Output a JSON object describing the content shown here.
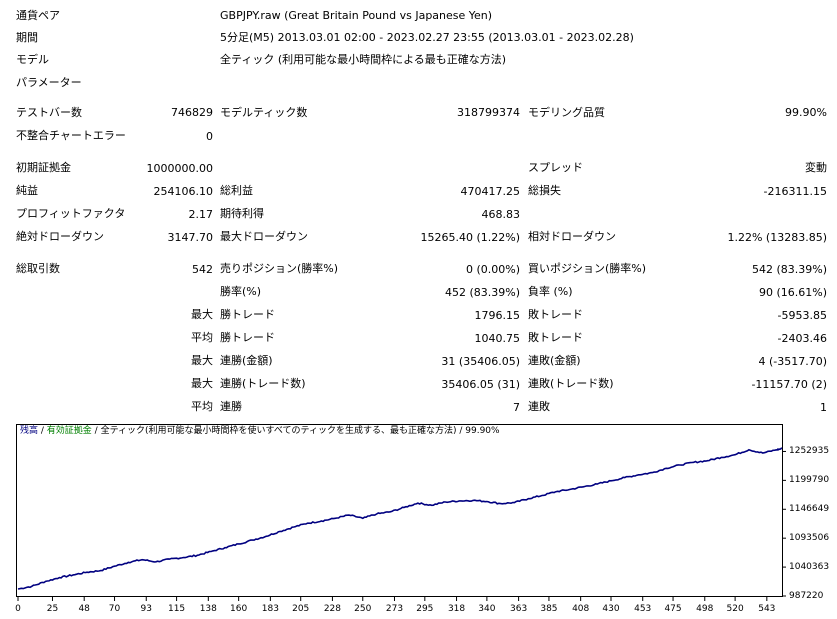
{
  "report": {
    "symbol_label": "通貨ペア",
    "symbol_value": "GBPJPY.raw (Great Britain Pound vs Japanese Yen)",
    "period_label": "期間",
    "period_value": "5分足(M5) 2013.03.01 02:00 - 2023.02.27 23:55 (2013.03.01 - 2023.02.28)",
    "model_label": "モデル",
    "model_value": "全ティック (利用可能な最小時間枠による最も正確な方法)",
    "params_label": "パラメーター",
    "bars_label": "テストバー数",
    "bars_value": "746829",
    "ticks_label": "モデルティック数",
    "ticks_value": "318799374",
    "quality_label": "モデリング品質",
    "quality_value": "99.90%",
    "mismatch_label": "不整合チャートエラー",
    "mismatch_value": "0",
    "deposit_label": "初期証拠金",
    "deposit_value": "1000000.00",
    "spread_label": "スプレッド",
    "spread_value": "変動",
    "net_label": "純益",
    "net_value": "254106.10",
    "gross_profit_label": "総利益",
    "gross_profit_value": "470417.25",
    "gross_loss_label": "総損失",
    "gross_loss_value": "-216311.15",
    "pf_label": "プロフィットファクタ",
    "pf_value": "2.17",
    "payoff_label": "期待利得",
    "payoff_value": "468.83",
    "abs_dd_label": "絶対ドローダウン",
    "abs_dd_value": "3147.70",
    "max_dd_label": "最大ドローダウン",
    "max_dd_value": "15265.40 (1.22%)",
    "rel_dd_label": "相対ドローダウン",
    "rel_dd_value": "1.22% (13283.85)",
    "total_trades_label": "総取引数",
    "total_trades_value": "542",
    "short_label": "売りポジション(勝率%)",
    "short_value": "0 (0.00%)",
    "long_label": "買いポジション(勝率%)",
    "long_value": "542 (83.39%)",
    "win_rate_label": "勝率(%)",
    "win_rate_value": "452 (83.39%)",
    "loss_rate_label": "負率 (%)",
    "loss_rate_value": "90 (16.61%)",
    "max_label": "最大",
    "avg_label": "平均",
    "win_trade_label": "勝トレード",
    "loss_trade_label": "敗トレード",
    "max_win_trade_value": "1796.15",
    "max_loss_trade_value": "-5953.85",
    "avg_win_trade_value": "1040.75",
    "avg_loss_trade_value": "-2403.46",
    "consec_win_money_label": "連勝(金額)",
    "consec_win_money_value": "31 (35406.05)",
    "consec_loss_money_label": "連敗(金額)",
    "consec_loss_money_value": "4 (-3517.70)",
    "consec_win_count_label": "連勝(トレード数)",
    "consec_win_count_value": "35406.05 (31)",
    "consec_loss_count_label": "連敗(トレード数)",
    "consec_loss_count_value": "-11157.70 (2)",
    "avg_consec_win_label": "連勝",
    "avg_consec_win_value": "7",
    "avg_consec_loss_label": "連敗",
    "avg_consec_loss_value": "1"
  },
  "chart": {
    "legend_balance": "残高",
    "legend_sep1": " / ",
    "legend_equity": "有効証拠金",
    "legend_sep2": " / ",
    "legend_rest": "全ティック(利用可能な最小時間枠を使いすべてのティックを生成する、最も正確な方法) / 99.90%",
    "line_color": "#000080",
    "balance_color": "#000080",
    "equity_color": "#008000",
    "y_ticks": [
      "1252935",
      "1199790",
      "1146649",
      "1093506",
      "1040363",
      "987220"
    ],
    "x_ticks": [
      "0",
      "25",
      "48",
      "70",
      "93",
      "115",
      "138",
      "160",
      "183",
      "205",
      "228",
      "250",
      "273",
      "295",
      "318",
      "340",
      "363",
      "385",
      "408",
      "430",
      "453",
      "475",
      "498",
      "520",
      "543"
    ]
  },
  "chart_data": {
    "type": "line",
    "title": "",
    "xlabel": "",
    "ylabel": "",
    "xlim": [
      0,
      554
    ],
    "ylim": [
      987220,
      1279500
    ],
    "series": [
      {
        "x": [
          0,
          10,
          20,
          30,
          40,
          50,
          60,
          70,
          80,
          90,
          100,
          110,
          120,
          130,
          140,
          150,
          160,
          170,
          180,
          190,
          200,
          210,
          220,
          230,
          240,
          250,
          260,
          270,
          280,
          290,
          300,
          310,
          320,
          330,
          340,
          350,
          360,
          370,
          380,
          390,
          400,
          410,
          420,
          430,
          440,
          450,
          460,
          470,
          480,
          490,
          500,
          510,
          520,
          530,
          540,
          550,
          554
        ],
        "values": [
          1000000,
          1005000,
          1014000,
          1021000,
          1026000,
          1031000,
          1034000,
          1042000,
          1049000,
          1054000,
          1050000,
          1055000,
          1058000,
          1062000,
          1069000,
          1076000,
          1083000,
          1090000,
          1097000,
          1106000,
          1114000,
          1121000,
          1125000,
          1130000,
          1136000,
          1130000,
          1138000,
          1142000,
          1150000,
          1158000,
          1154000,
          1160000,
          1162000,
          1163000,
          1161000,
          1157000,
          1159000,
          1166000,
          1172000,
          1179000,
          1183000,
          1188000,
          1193000,
          1199000,
          1205000,
          1210000,
          1214000,
          1222000,
          1228000,
          1233000,
          1236000,
          1242000,
          1247000,
          1256000,
          1250000,
          1256000,
          1258000
        ]
      }
    ]
  }
}
